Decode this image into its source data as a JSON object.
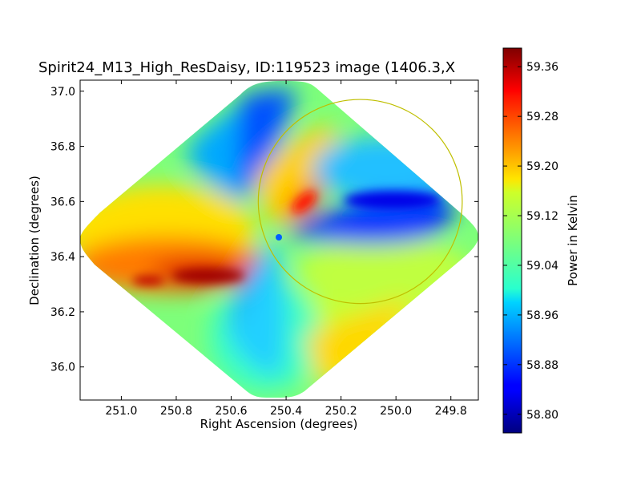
{
  "chart_data": {
    "type": "heatmap",
    "title": "Spirit24_M13_High_ResDaisy, ID:119523 image (1406.3,X",
    "xlabel": "Right Ascension (degrees)",
    "ylabel": "Declination (degrees)",
    "xlim": [
      251.15,
      249.7
    ],
    "ylim": [
      35.88,
      37.04
    ],
    "xticks": [
      "251.0",
      "250.8",
      "250.6",
      "250.4",
      "250.2",
      "250.0",
      "249.8"
    ],
    "xtick_values": [
      251.0,
      250.8,
      250.6,
      250.4,
      250.2,
      250.0,
      249.8
    ],
    "yticks": [
      "36.0",
      "36.2",
      "36.4",
      "36.6",
      "36.8",
      "37.0"
    ],
    "ytick_values": [
      36.0,
      36.2,
      36.4,
      36.6,
      36.8,
      37.0
    ],
    "colorbar": {
      "label": "Power in Kelvin",
      "range": [
        58.77,
        59.39
      ],
      "ticks": [
        "58.80",
        "58.88",
        "58.96",
        "59.04",
        "59.12",
        "59.20",
        "59.28",
        "59.36"
      ],
      "tick_values": [
        58.8,
        58.88,
        58.96,
        59.04,
        59.12,
        59.2,
        59.28,
        59.36
      ],
      "colormap": "jet"
    },
    "map": {
      "shape": "diamond",
      "center_ra": 250.42,
      "center_dec": 36.46,
      "features": [
        {
          "region": "west lobe",
          "ra": 250.75,
          "dec": 36.35,
          "value": 59.33
        },
        {
          "region": "northwest lobe",
          "ra": 250.6,
          "dec": 36.85,
          "value": 58.88
        },
        {
          "region": "northeast lobe",
          "ra": 250.25,
          "dec": 36.62,
          "value": 59.27
        },
        {
          "region": "east lobe",
          "ra": 250.05,
          "dec": 36.55,
          "value": 58.84
        },
        {
          "region": "south lobe",
          "ra": 250.45,
          "dec": 36.15,
          "value": 58.98
        },
        {
          "region": "southeast lobe",
          "ra": 250.15,
          "dec": 36.1,
          "value": 59.12
        }
      ]
    },
    "circle": {
      "center_ra": 250.13,
      "center_dec": 36.6,
      "radius_deg": 0.37,
      "color": "#bfbf00"
    }
  }
}
